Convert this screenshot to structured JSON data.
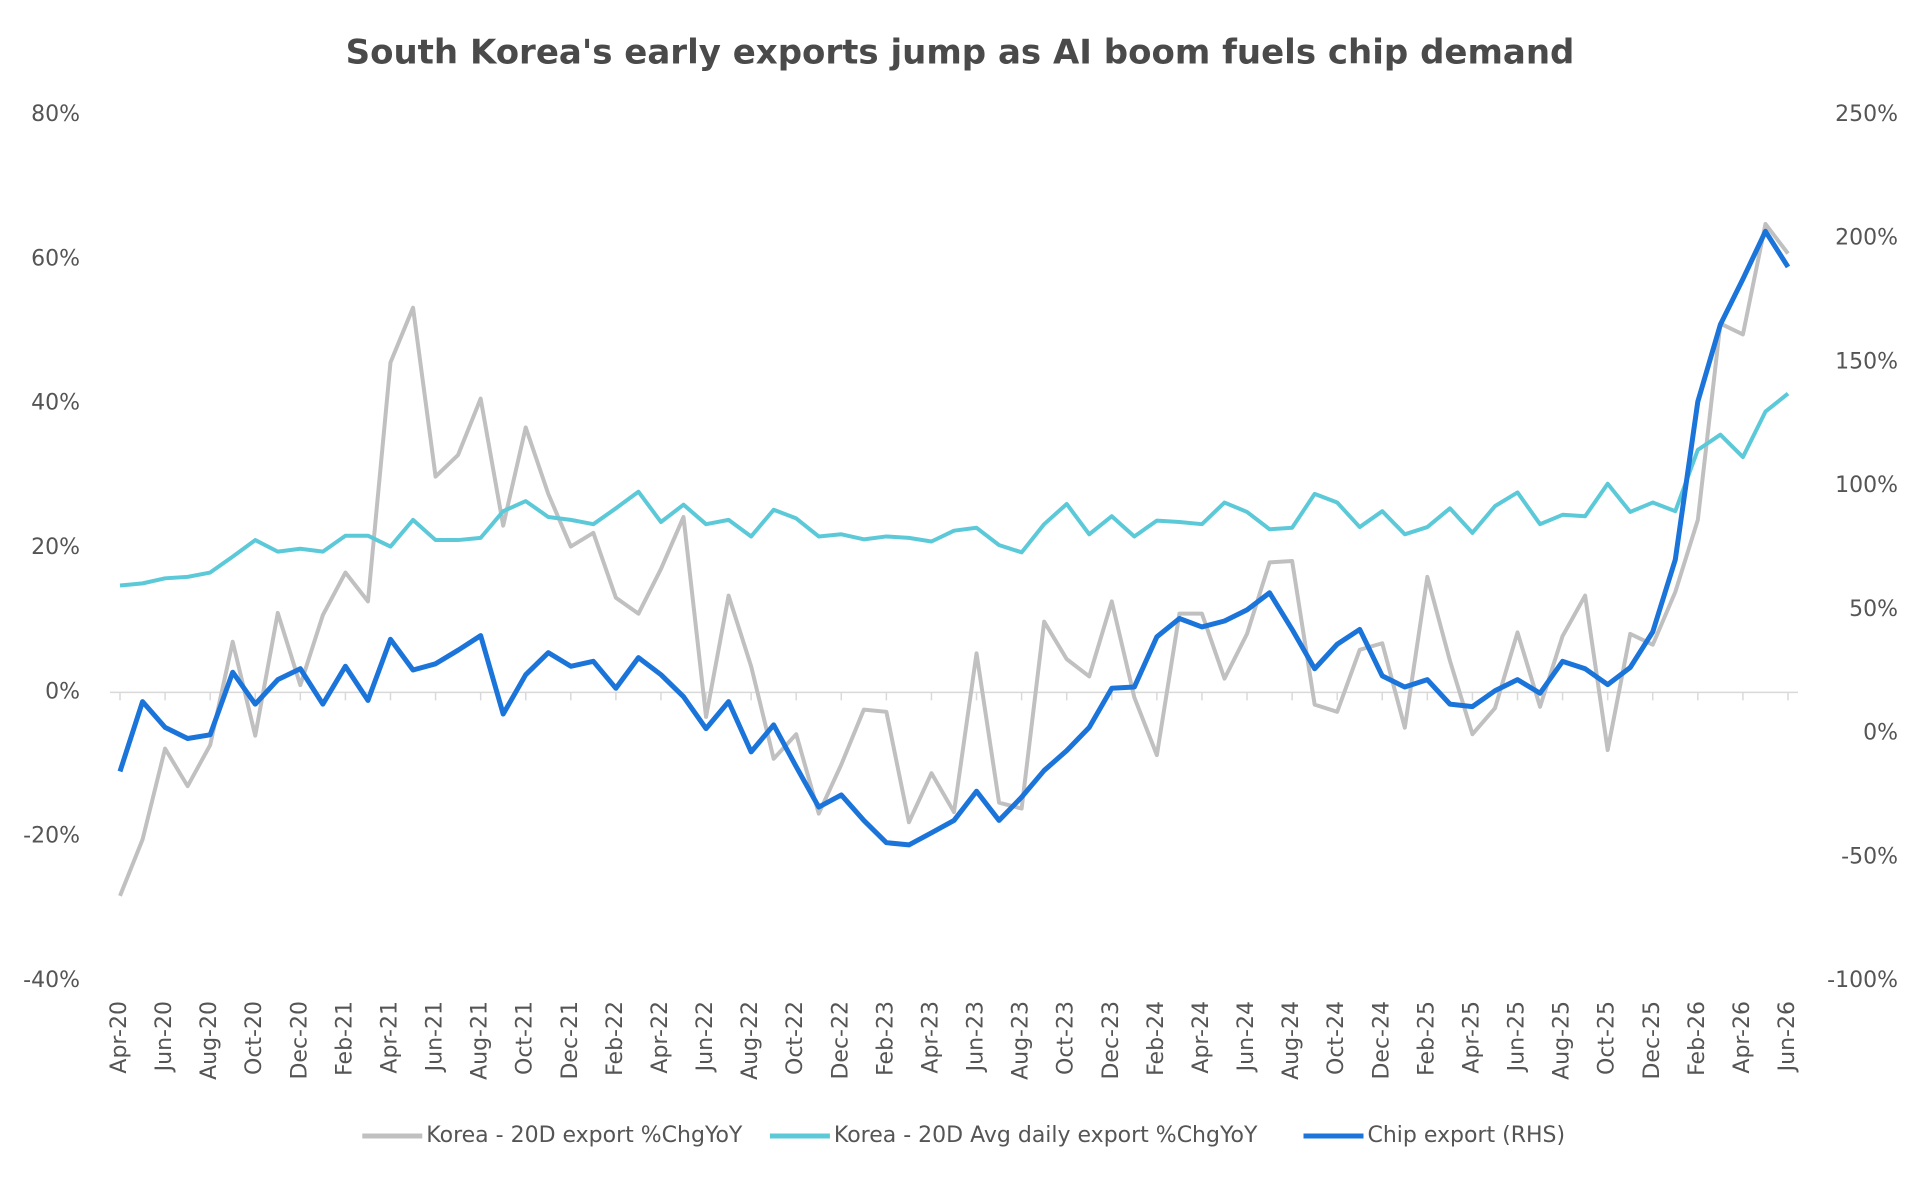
{
  "chart_data": {
    "type": "line",
    "title": "South Korea's early exports jump as AI boom fuels chip demand",
    "categories": [
      "Apr-20",
      null,
      "Jun-20",
      null,
      "Aug-20",
      null,
      "Oct-20",
      null,
      "Dec-20",
      null,
      "Feb-21",
      null,
      "Apr-21",
      null,
      "Jun-21",
      null,
      "Aug-21",
      null,
      "Oct-21",
      null,
      "Dec-21",
      null,
      "Feb-22",
      null,
      "Apr-22",
      null,
      "Jun-22",
      null,
      "Aug-22",
      null,
      "Oct-22",
      null,
      "Dec-22",
      null,
      "Feb-23",
      null,
      "Apr-23",
      null,
      "Jun-23",
      null,
      "Aug-23",
      null,
      "Oct-23",
      null,
      "Dec-23",
      null,
      "Feb-24",
      null,
      "Apr-24",
      null,
      "Jun-24",
      null,
      "Aug-24",
      null,
      "Oct-24",
      null,
      "Dec-24",
      null,
      "Feb-25",
      null,
      "Apr-25",
      null,
      "Jun-25",
      null,
      "Aug-25",
      null,
      "Oct-25",
      null,
      "Dec-25",
      null,
      "Feb-26",
      null,
      "Apr-26",
      null,
      "Jun-26"
    ],
    "series": [
      {
        "name": "Korea - 20D export %ChgYoY",
        "color": "#c0c0c0",
        "values": [
          -28.2,
          -20.4,
          -7.8,
          -13,
          -7.3,
          7,
          -6,
          11,
          1,
          10.7,
          16.6,
          12.6,
          45.7,
          53.3,
          29.9,
          32.9,
          40.7,
          23.1,
          36.7,
          27.5,
          20.2,
          22.1,
          13.1,
          10.9,
          17.1,
          24.3,
          -3.4,
          13.4,
          3.6,
          -9.2,
          -5.8,
          -16.8,
          -10,
          -2.4,
          -2.7,
          -18,
          -11.2,
          -16.6,
          5.4,
          -15.3,
          -16.1,
          9.8,
          4.6,
          2.2,
          12.6,
          -0.7,
          -8.7,
          10.9,
          10.9,
          1.9,
          8.1,
          18,
          18.2,
          -1.7,
          -2.7,
          5.9,
          6.8,
          -4.9,
          16,
          4.4,
          -5.8,
          -2.2,
          8.3,
          -2,
          7.8,
          13.4,
          -8,
          8.1,
          6.6,
          13.9,
          23.9,
          51.1,
          49.6,
          64.9,
          60.8
        ]
      },
      {
        "name": "Korea - 20D Avg daily export %ChgYoY",
        "color": "#5cc9d9",
        "values": [
          14.8,
          15.1,
          15.8,
          16,
          16.6,
          18.8,
          21.1,
          19.5,
          19.9,
          19.5,
          21.7,
          21.7,
          20.2,
          23.9,
          21.1,
          21.1,
          21.4,
          25.1,
          26.5,
          24.3,
          23.9,
          23.3,
          25.5,
          27.8,
          23.6,
          26,
          23.3,
          23.9,
          21.6,
          25.3,
          24.1,
          21.6,
          21.9,
          21.2,
          21.6,
          21.4,
          20.9,
          22.4,
          22.8,
          20.4,
          19.4,
          23.3,
          26.1,
          21.9,
          24.4,
          21.6,
          23.8,
          23.6,
          23.3,
          26.3,
          25,
          22.6,
          22.8,
          27.5,
          26.3,
          22.9,
          25.1,
          21.9,
          22.9,
          25.5,
          22.1,
          25.8,
          27.7,
          23.3,
          24.6,
          24.4,
          28.9,
          25,
          26.3,
          25.1,
          33.6,
          35.7,
          32.6,
          38.9,
          41.4
        ]
      },
      {
        "name": "Chip export (RHS)",
        "color": "#1a74d9",
        "axis": "y2",
        "values": [
          -15.3,
          12.9,
          2.5,
          -2,
          -0.5,
          24.8,
          11.9,
          21.8,
          26.2,
          11.9,
          27.2,
          13.4,
          38.1,
          25.7,
          28.2,
          33.7,
          39.6,
          7.9,
          23.8,
          32.7,
          27.2,
          29.2,
          18.3,
          30.7,
          23.8,
          14.9,
          2,
          12.9,
          -7.4,
          3.5,
          -13.4,
          -29.7,
          -24.8,
          -35.1,
          -44.1,
          -45,
          -40.1,
          -35.1,
          -23.3,
          -35.1,
          -25.7,
          -14.9,
          -6.9,
          2.5,
          18.3,
          18.8,
          39.1,
          46.5,
          43.1,
          45.5,
          50,
          56.9,
          42.1,
          26.2,
          36.1,
          42.1,
          23.3,
          18.8,
          21.8,
          11.9,
          10.9,
          17.3,
          21.8,
          16.3,
          29.2,
          26.2,
          19.8,
          26.7,
          41.1,
          70.3,
          134.2,
          165.3,
          183.7,
          203,
          188.6
        ]
      }
    ],
    "ylim": [
      -40,
      80
    ],
    "yticks": [
      {
        "value": -40,
        "label": "-40%"
      },
      {
        "value": -20,
        "label": "-20%"
      },
      {
        "value": 0,
        "label": "0%"
      },
      {
        "value": 20,
        "label": "20%"
      },
      {
        "value": 40,
        "label": "40%"
      },
      {
        "value": 60,
        "label": "60%"
      },
      {
        "value": 80,
        "label": "80%"
      }
    ],
    "y2lim": [
      -100,
      250
    ],
    "y2ticks": [
      {
        "value": -100,
        "label": "-100%"
      },
      {
        "value": -50,
        "label": "-50%"
      },
      {
        "value": 0,
        "label": "0%"
      },
      {
        "value": 50,
        "label": "50%"
      },
      {
        "value": 100,
        "label": "100%"
      },
      {
        "value": 150,
        "label": "150%"
      },
      {
        "value": 200,
        "label": "200%"
      },
      {
        "value": 250,
        "label": "250%"
      }
    ],
    "legend": "bottom"
  }
}
